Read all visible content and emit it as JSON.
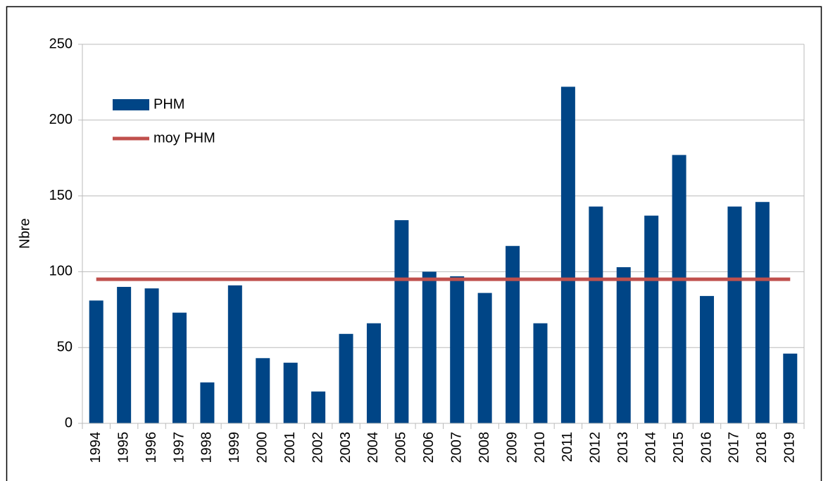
{
  "chart_data": {
    "type": "bar",
    "y_label": "Nbre",
    "categories": [
      "1994",
      "1995",
      "1996",
      "1997",
      "1998",
      "1999",
      "2000",
      "2001",
      "2002",
      "2003",
      "2004",
      "2005",
      "2006",
      "2007",
      "2008",
      "2009",
      "2010",
      "2011",
      "2012",
      "2013",
      "2014",
      "2015",
      "2016",
      "2017",
      "2018",
      "2019"
    ],
    "series": [
      {
        "name": "PHM",
        "type": "bar",
        "color": "#004586",
        "values": [
          81,
          90,
          89,
          73,
          27,
          91,
          43,
          40,
          21,
          59,
          66,
          134,
          100,
          97,
          86,
          117,
          66,
          222,
          143,
          103,
          137,
          177,
          84,
          143,
          146,
          46
        ]
      },
      {
        "name": "moy PHM",
        "type": "line",
        "color": "#c0504d",
        "values": [
          95,
          95,
          95,
          95,
          95,
          95,
          95,
          95,
          95,
          95,
          95,
          95,
          95,
          95,
          95,
          95,
          95,
          95,
          95,
          95,
          95,
          95,
          95,
          95,
          95,
          95
        ]
      }
    ],
    "ylim": [
      0,
      250
    ],
    "yticks": [
      0,
      50,
      100,
      150,
      200,
      250
    ],
    "grid": true
  }
}
